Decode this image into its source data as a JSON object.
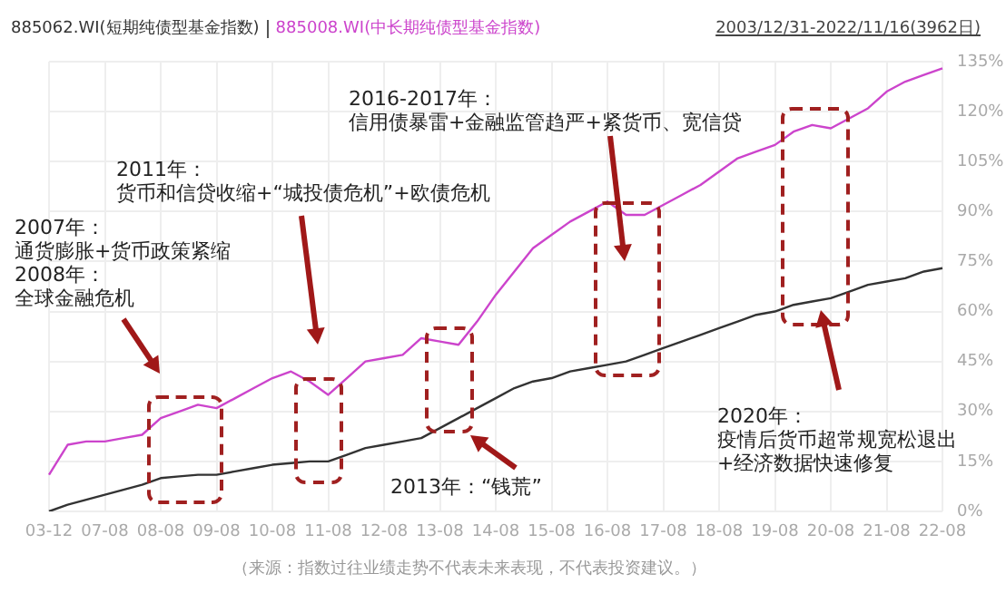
{
  "chart_data": {
    "type": "line",
    "subtitle": "2003/12/31-2022/11/16(3962日)",
    "categories": [
      "03-12",
      null,
      null,
      "07-08",
      null,
      null,
      "08-08",
      null,
      null,
      "09-08",
      null,
      null,
      "10-08",
      null,
      null,
      "11-08",
      null,
      null,
      "12-08",
      null,
      null,
      "13-08",
      null,
      null,
      "14-08",
      null,
      null,
      "15-08",
      null,
      null,
      "16-08",
      null,
      null,
      "17-08",
      null,
      null,
      "18-08",
      null,
      null,
      "19-08",
      null,
      null,
      "20-08",
      null,
      null,
      "21-08",
      null,
      null,
      "22-08"
    ],
    "ylim": [
      0,
      135
    ],
    "yticks": [
      {
        "value": 0,
        "label": "0%"
      },
      {
        "value": 15,
        "label": "15%"
      },
      {
        "value": 30,
        "label": "30%"
      },
      {
        "value": 45,
        "label": "45%"
      },
      {
        "value": 60,
        "label": "60%"
      },
      {
        "value": 75,
        "label": "75%"
      },
      {
        "value": 90,
        "label": "90%"
      },
      {
        "value": 105,
        "label": "105%"
      },
      {
        "value": 120,
        "label": "120%"
      },
      {
        "value": 135,
        "label": "135%"
      }
    ],
    "grid": true,
    "legend": "top left",
    "marker": "none",
    "line_style": "solid",
    "series": [
      {
        "name": "885062.WI(短期纯债型基金指数)",
        "color": "#333333",
        "values": [
          0,
          2,
          3.5,
          5,
          6.5,
          8,
          10,
          10.5,
          11,
          11,
          12,
          13,
          14,
          14.5,
          15,
          15,
          17,
          19,
          20,
          21,
          22,
          25,
          28,
          31,
          34,
          37,
          39,
          40,
          42,
          43,
          44,
          45,
          47,
          49,
          51,
          53,
          55,
          57,
          59,
          60,
          62,
          63,
          64,
          66,
          68,
          69,
          70,
          72,
          73
        ]
      },
      {
        "name": "885008.WI(中长期纯债型基金指数)",
        "color": "#cc44cc",
        "values": [
          11,
          20,
          21,
          21,
          22,
          23,
          28,
          30,
          32,
          31,
          34,
          37,
          40,
          42,
          39,
          35,
          40,
          45,
          46,
          47,
          52,
          51,
          50,
          57,
          65,
          72,
          79,
          83,
          87,
          90,
          93,
          89,
          89,
          92,
          95,
          98,
          102,
          106,
          108,
          110,
          114,
          116,
          115,
          118,
          121,
          126,
          129,
          131,
          133
        ]
      }
    ],
    "annotations": [
      "2007年：",
      "通货膨胀+货币政策紧缩",
      "2008年：",
      "全球金融危机",
      "2011年：",
      "货币和信贷收缩+“城投债危机”+欧债危机",
      "2016-2017年：",
      "信用债暴雷+金融监管趋严+紧货币、宽信贷",
      "2013年：“钱荒”",
      "2020年：",
      "疫情后货币超常规宽松退出",
      "+经济数据快速修复",
      "（来源：指数过往业绩走势不代表未来表现，不代表投资建议。）"
    ]
  }
}
